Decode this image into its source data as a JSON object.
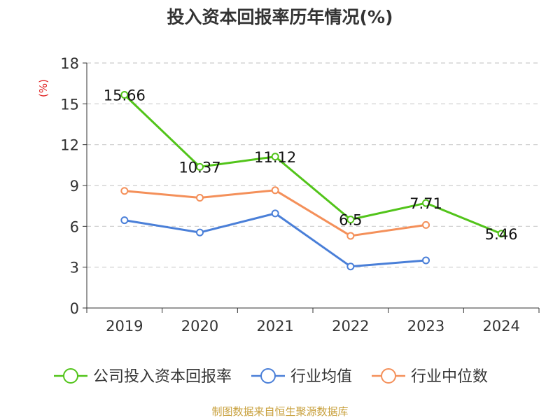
{
  "chart_data": {
    "type": "line",
    "title": "投入资本回报率历年情况(%)",
    "ylabel": "(%)",
    "ylim": [
      0,
      18
    ],
    "yticks": [
      0,
      3,
      6,
      9,
      12,
      15,
      18
    ],
    "grid": true,
    "legend_position": "bottom",
    "categories": [
      "2019",
      "2020",
      "2021",
      "2022",
      "2023",
      "2024"
    ],
    "series": [
      {
        "name": "公司投入资本回报率",
        "color": "#52c41a",
        "values": [
          15.66,
          10.37,
          11.12,
          6.5,
          7.71,
          5.46
        ],
        "labels": [
          "15.66",
          "10.37",
          "11.12",
          "6.5",
          "7.71",
          "5.46"
        ]
      },
      {
        "name": "行业均值",
        "color": "#4a7fd8",
        "values": [
          6.45,
          5.55,
          6.95,
          3.05,
          3.5,
          null
        ]
      },
      {
        "name": "行业中位数",
        "color": "#f4905a",
        "values": [
          8.6,
          8.1,
          8.65,
          5.3,
          6.1,
          null
        ]
      }
    ],
    "source": "制图数据来自恒生聚源数据库",
    "unit_color": "#e02020",
    "source_color": "#c8a03c"
  }
}
